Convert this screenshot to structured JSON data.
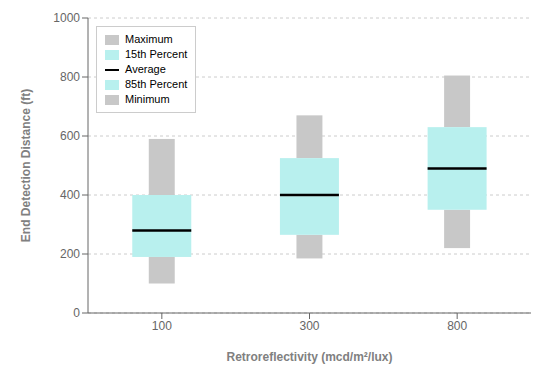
{
  "chart_data": {
    "type": "box",
    "xlabel": "Retroreflectivity (mcd/m²/lux)",
    "ylabel": "End Detection Distance (ft)",
    "categories": [
      "100",
      "300",
      "800"
    ],
    "series": [
      {
        "name": "Maximum",
        "type": "bar",
        "color": "#c8c8c8",
        "values": [
          590,
          670,
          805
        ]
      },
      {
        "name": "15th Percent",
        "type": "bar",
        "color": "#b8f0ee",
        "values": [
          400,
          525,
          630
        ]
      },
      {
        "name": "Average",
        "type": "line",
        "color": "#000000",
        "values": [
          280,
          400,
          490
        ]
      },
      {
        "name": "85th Percent",
        "type": "bar",
        "color": "#b8f0ee",
        "values": [
          190,
          265,
          350
        ]
      },
      {
        "name": "Minimum",
        "type": "bar",
        "color": "#c8c8c8",
        "values": [
          100,
          185,
          220
        ]
      }
    ],
    "ylim": [
      0,
      1000
    ],
    "yticks": [
      0,
      200,
      400,
      600,
      800,
      1000
    ],
    "grid": true,
    "legend": "upper left"
  }
}
